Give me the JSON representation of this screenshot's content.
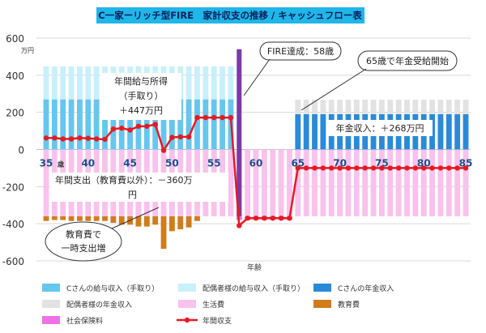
{
  "title": "C一家ーリッチ型FIRE　家計収支の推移 / キャッシュフロー表",
  "y_unit": "万円",
  "x_axis_label": "年齢",
  "age_suffix": "歳",
  "colors": {
    "salary_c": "#66c6ee",
    "salary_spouse": "#c8f0fa",
    "pension_c": "#2a8ad8",
    "pension_spouse": "#e2e2e2",
    "living": "#f8c2ec",
    "education": "#d07c1c",
    "social_ins": "#f070e6",
    "net": "#e31b23",
    "fire_line": "#7a3aa6"
  },
  "annotations": {
    "income_line1": "年間給与所得",
    "income_line2": "（手取り）",
    "income_line3": "＋447万円",
    "expense_line1": "年間支出（教育費以外）：－360万",
    "expense_line2": "円",
    "fire": "FIRE達成：58歳",
    "pension_start": "65歳で年金受給開始",
    "pension_income": "年金収入：＋268万円",
    "edu_line1": "教育費で",
    "edu_line2": "一時支出増"
  },
  "legend": [
    {
      "label": "Cさんの給与収入（手取り）",
      "color_key": "salary_c",
      "kind": "bar"
    },
    {
      "label": "配偶者様の給与収入（手取り）",
      "color_key": "salary_spouse",
      "kind": "bar"
    },
    {
      "label": "Cさんの年金収入",
      "color_key": "pension_c",
      "kind": "bar"
    },
    {
      "label": "配偶者様の年金収入",
      "color_key": "pension_spouse",
      "kind": "bar"
    },
    {
      "label": "生活費",
      "color_key": "living",
      "kind": "bar"
    },
    {
      "label": "教育費",
      "color_key": "education",
      "kind": "bar"
    },
    {
      "label": "社会保険料",
      "color_key": "social_ins",
      "kind": "bar"
    },
    {
      "label": "年間収支",
      "color_key": "net",
      "kind": "line"
    }
  ],
  "chart_data": {
    "type": "bar",
    "x_start": 35,
    "x_end": 85,
    "xlim": [
      35,
      85
    ],
    "ylim": [
      -600,
      600
    ],
    "yticks": [
      -600,
      -400,
      -200,
      0,
      200,
      400,
      600
    ],
    "xticks": [
      35,
      40,
      45,
      50,
      55,
      60,
      65,
      70,
      75,
      80,
      85
    ],
    "fire_age": 58,
    "series": [
      {
        "name": "Cさんの給与収入（手取り）",
        "key": "salary_c",
        "x": [
          35,
          36,
          37,
          38,
          39,
          40,
          41,
          42,
          43,
          44,
          45,
          46,
          47,
          48,
          49,
          50,
          51,
          52,
          53,
          54,
          55,
          56,
          57
        ],
        "values": [
          270,
          270,
          270,
          270,
          270,
          270,
          270,
          270,
          270,
          270,
          270,
          270,
          270,
          270,
          270,
          270,
          270,
          270,
          270,
          270,
          270,
          270,
          270
        ]
      },
      {
        "name": "配偶者様の給与収入（手取り）",
        "key": "salary_spouse",
        "x": [
          35,
          36,
          37,
          38,
          39,
          40,
          41,
          42,
          43,
          44,
          45,
          46,
          47,
          48,
          49,
          50,
          51,
          52,
          53,
          54,
          55,
          56,
          57
        ],
        "values": [
          177,
          177,
          177,
          177,
          177,
          177,
          177,
          177,
          177,
          177,
          177,
          177,
          177,
          177,
          177,
          177,
          177,
          177,
          177,
          177,
          177,
          177,
          177
        ]
      },
      {
        "name": "Cさんの年金収入",
        "key": "pension_c",
        "x": [
          65,
          66,
          67,
          68,
          69,
          70,
          71,
          72,
          73,
          74,
          75,
          76,
          77,
          78,
          79,
          80,
          81,
          82,
          83,
          84,
          85
        ],
        "values": [
          190,
          190,
          190,
          190,
          190,
          190,
          190,
          190,
          190,
          190,
          190,
          190,
          190,
          190,
          190,
          190,
          190,
          190,
          190,
          190,
          190
        ]
      },
      {
        "name": "配偶者様の年金収入",
        "key": "pension_spouse",
        "x": [
          65,
          66,
          67,
          68,
          69,
          70,
          71,
          72,
          73,
          74,
          75,
          76,
          77,
          78,
          79,
          80,
          81,
          82,
          83,
          84,
          85
        ],
        "values": [
          78,
          78,
          78,
          78,
          78,
          78,
          78,
          78,
          78,
          78,
          78,
          78,
          78,
          78,
          78,
          78,
          78,
          78,
          78,
          78,
          78
        ]
      },
      {
        "name": "生活費",
        "key": "living",
        "x": [
          35,
          36,
          37,
          38,
          39,
          40,
          41,
          42,
          43,
          44,
          45,
          46,
          47,
          48,
          49,
          50,
          51,
          52,
          53,
          54,
          55,
          56,
          57,
          58,
          59,
          60,
          61,
          62,
          63,
          64,
          65,
          66,
          67,
          68,
          69,
          70,
          71,
          72,
          73,
          74,
          75,
          76,
          77,
          78,
          79,
          80,
          81,
          82,
          83,
          84,
          85
        ],
        "values": [
          -360,
          -360,
          -360,
          -360,
          -360,
          -360,
          -360,
          -360,
          -360,
          -360,
          -360,
          -360,
          -360,
          -360,
          -360,
          -360,
          -360,
          -360,
          -360,
          -360,
          -360,
          -360,
          -360,
          -360,
          -360,
          -360,
          -360,
          -360,
          -360,
          -360,
          -360,
          -360,
          -360,
          -360,
          -360,
          -360,
          -360,
          -360,
          -360,
          -360,
          -360,
          -360,
          -360,
          -360,
          -360,
          -360,
          -360,
          -360,
          -360,
          -360,
          -360
        ]
      },
      {
        "name": "教育費",
        "key": "education",
        "x": [
          35,
          36,
          37,
          38,
          39,
          40,
          41,
          42,
          43,
          44,
          45,
          46,
          47,
          48,
          49,
          50,
          51,
          52,
          53,
          54,
          55,
          56,
          57
        ],
        "values": [
          -25,
          -20,
          -20,
          -25,
          -25,
          -25,
          -25,
          -25,
          -35,
          -45,
          -45,
          -55,
          -55,
          -45,
          -175,
          -80,
          -70,
          -60,
          -25,
          0,
          0,
          0,
          0
        ]
      },
      {
        "name": "社会保険料",
        "key": "social_ins",
        "x": [
          58,
          59,
          60,
          61,
          62,
          63,
          64
        ],
        "values": [
          -20,
          -20,
          -20,
          -20,
          -20,
          -20,
          -20
        ]
      },
      {
        "name": "年間収支",
        "key": "net",
        "kind": "line",
        "x": [
          35,
          36,
          37,
          38,
          39,
          40,
          41,
          42,
          43,
          44,
          45,
          46,
          47,
          48,
          49,
          50,
          51,
          52,
          53,
          54,
          55,
          56,
          57,
          58,
          59,
          60,
          61,
          62,
          63,
          64,
          65,
          66,
          67,
          68,
          69,
          70,
          71,
          72,
          73,
          74,
          75,
          76,
          77,
          78,
          79,
          80,
          81,
          82,
          83,
          84,
          85
        ],
        "values": [
          62,
          62,
          57,
          57,
          62,
          60,
          57,
          55,
          110,
          115,
          105,
          125,
          125,
          135,
          -5,
          65,
          68,
          68,
          172,
          172,
          172,
          172,
          172,
          -410,
          -370,
          -370,
          -370,
          -370,
          -370,
          -370,
          -100,
          -100,
          -100,
          -100,
          -100,
          -100,
          -100,
          -100,
          -100,
          -100,
          -100,
          -100,
          -100,
          -100,
          -100,
          -100,
          -100,
          -100,
          -100,
          -100,
          -100
        ]
      }
    ]
  }
}
